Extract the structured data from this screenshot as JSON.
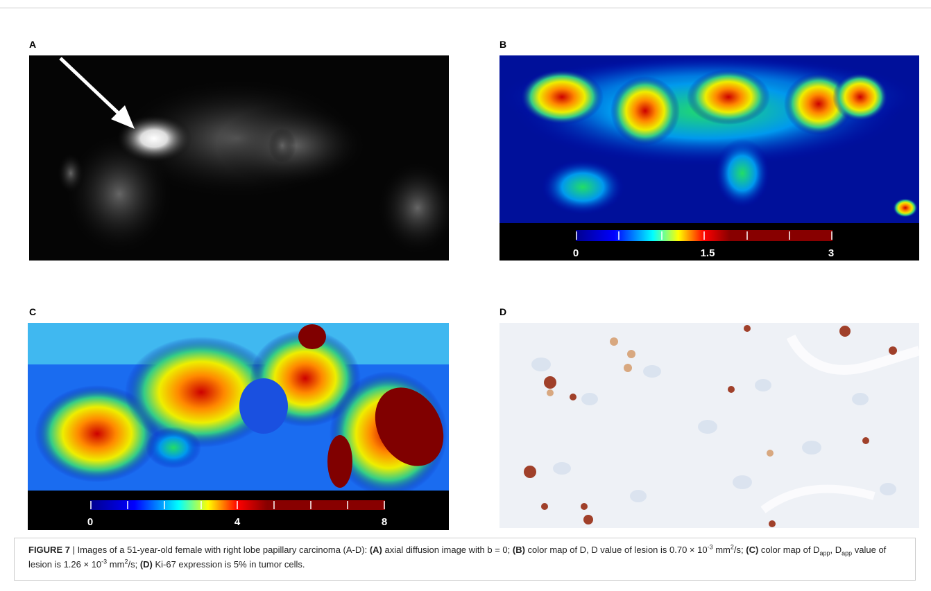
{
  "panels": [
    {
      "label": "A"
    },
    {
      "label": "B",
      "colorbar_ticks": [
        "0",
        "1.5",
        "3"
      ]
    },
    {
      "label": "C",
      "colorbar_ticks": [
        "0",
        "4",
        "8"
      ]
    },
    {
      "label": "D"
    }
  ],
  "caption": [
    "FIGURE 7",
    " | Images of a 51-year-old female with right lobe papillary carcinoma (A-D): ",
    "(A)",
    " axial diffusion image with b = 0; ",
    "(B)",
    " color map of D, D value of lesion is 0.70 × 10",
    "-3",
    " mm",
    "2",
    "/s; ",
    "(C)",
    " color map of D",
    "app",
    ", D",
    "app",
    " value of lesion is 1.26 × 10",
    "-3",
    " mm",
    "2",
    "/s; ",
    "(D)",
    " Ki-67 expression is 5% in tumor cells."
  ]
}
